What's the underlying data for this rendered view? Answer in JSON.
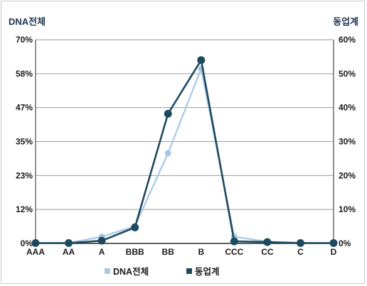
{
  "chart_data": {
    "type": "line",
    "categories": [
      "AAA",
      "AA",
      "A",
      "BBB",
      "BB",
      "B",
      "CCC",
      "CC",
      "C",
      "D"
    ],
    "y_left": {
      "label": "DNA전체",
      "ticks": [
        "0%",
        "12%",
        "23%",
        "35%",
        "47%",
        "58%",
        "70%"
      ],
      "ylim": [
        0,
        70
      ]
    },
    "y_right": {
      "label": "동업계",
      "ticks": [
        "0%",
        "10%",
        "20%",
        "30%",
        "40%",
        "50%",
        "60%"
      ],
      "ylim": [
        0,
        60
      ]
    },
    "series": [
      {
        "name": "DNA전체",
        "axis": "left",
        "color": "#a9c8e6",
        "values": [
          0.1,
          0.2,
          2.3,
          5.9,
          31.0,
          60.0,
          2.3,
          0.6,
          0.2,
          0.1
        ]
      },
      {
        "name": "동업계",
        "axis": "right",
        "color": "#1d4a5e",
        "values": [
          0.1,
          0.1,
          0.8,
          4.7,
          38.2,
          54.0,
          0.6,
          0.4,
          0.1,
          0.1
        ]
      }
    ],
    "grid": true,
    "legend": "bottom-center"
  }
}
